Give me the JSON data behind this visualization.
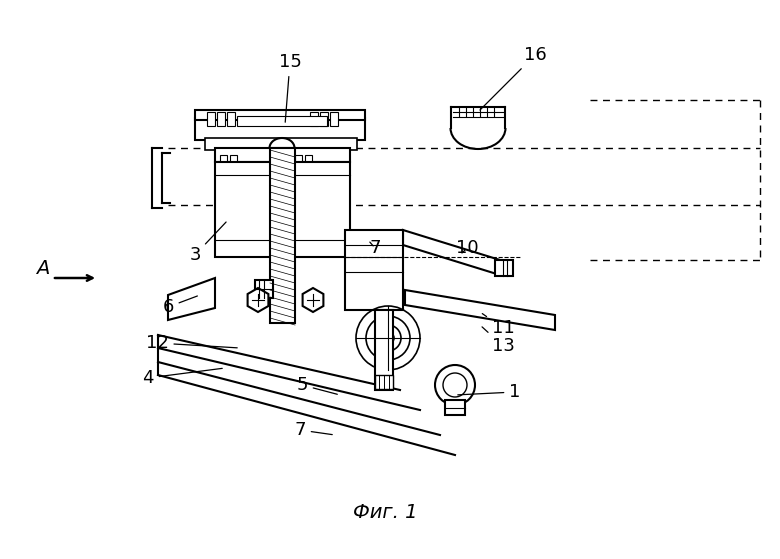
{
  "bg_color": "#ffffff",
  "line_color": "#000000",
  "title": "Фиг. 1",
  "A_label": "А",
  "labels": [
    "15",
    "16",
    "3",
    "7",
    "10",
    "6",
    "12",
    "4",
    "5",
    "7",
    "1",
    "11",
    "13"
  ]
}
